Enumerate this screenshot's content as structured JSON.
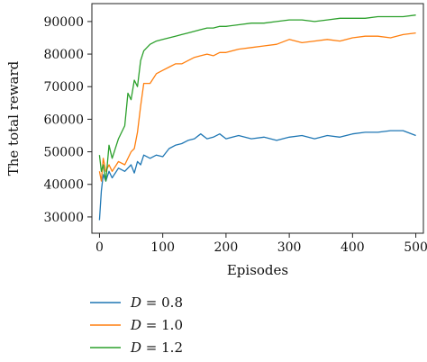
{
  "chart_data": {
    "type": "line",
    "title": "",
    "xlabel": "Episodes",
    "ylabel": "The total reward",
    "xlim": [
      -12,
      512
    ],
    "ylim": [
      25000,
      95500
    ],
    "xticks": [
      0,
      100,
      200,
      300,
      400,
      500
    ],
    "yticks": [
      30000,
      40000,
      50000,
      60000,
      70000,
      80000,
      90000
    ],
    "grid": false,
    "legend_position": "below-left",
    "series": [
      {
        "name": "D = 0.8",
        "legend_var": "D",
        "legend_value": "= 0.8",
        "color": "#1f77b4",
        "x": [
          0,
          3,
          6,
          10,
          15,
          20,
          30,
          40,
          50,
          55,
          60,
          65,
          70,
          80,
          90,
          100,
          110,
          120,
          130,
          140,
          150,
          160,
          170,
          180,
          190,
          200,
          220,
          240,
          260,
          280,
          300,
          320,
          340,
          360,
          380,
          400,
          420,
          440,
          460,
          480,
          500
        ],
        "values": [
          29000,
          38000,
          43000,
          41000,
          44000,
          42000,
          45000,
          44000,
          46000,
          43500,
          47000,
          46000,
          49000,
          48000,
          49000,
          48500,
          51000,
          52000,
          52500,
          53500,
          54000,
          55500,
          54000,
          54500,
          55500,
          54000,
          55000,
          54000,
          54500,
          53500,
          54500,
          55000,
          54000,
          55000,
          54500,
          55500,
          56000,
          56000,
          56500,
          56500,
          55000
        ]
      },
      {
        "name": "D = 1.0",
        "legend_var": "D",
        "legend_value": "= 1.0",
        "color": "#ff7f0e",
        "x": [
          0,
          3,
          6,
          10,
          15,
          20,
          30,
          40,
          50,
          55,
          60,
          65,
          70,
          80,
          90,
          100,
          110,
          120,
          130,
          140,
          150,
          160,
          170,
          180,
          190,
          200,
          220,
          240,
          260,
          280,
          300,
          320,
          340,
          360,
          380,
          400,
          420,
          440,
          460,
          480,
          500
        ],
        "values": [
          44000,
          41000,
          48000,
          44000,
          46000,
          44000,
          47000,
          46000,
          50000,
          51000,
          56000,
          64000,
          71000,
          71000,
          74000,
          75000,
          76000,
          77000,
          77000,
          78000,
          79000,
          79500,
          80000,
          79500,
          80500,
          80500,
          81500,
          82000,
          82500,
          83000,
          84500,
          83500,
          84000,
          84500,
          84000,
          85000,
          85500,
          85500,
          85000,
          86000,
          86500
        ]
      },
      {
        "name": "D = 1.2",
        "legend_var": "D",
        "legend_value": "= 1.2",
        "color": "#2ca02c",
        "x": [
          0,
          3,
          6,
          10,
          15,
          20,
          30,
          40,
          45,
          50,
          55,
          60,
          65,
          70,
          80,
          90,
          100,
          110,
          120,
          130,
          140,
          150,
          160,
          170,
          180,
          190,
          200,
          220,
          240,
          260,
          280,
          300,
          320,
          340,
          360,
          380,
          400,
          420,
          440,
          460,
          480,
          500
        ],
        "values": [
          49000,
          44000,
          46000,
          41000,
          52000,
          48000,
          54000,
          58000,
          68000,
          66000,
          72000,
          70000,
          78000,
          81000,
          83000,
          84000,
          84500,
          85000,
          85500,
          86000,
          86500,
          87000,
          87500,
          88000,
          88000,
          88500,
          88500,
          89000,
          89500,
          89500,
          90000,
          90500,
          90500,
          90000,
          90500,
          91000,
          91000,
          91000,
          91500,
          91500,
          91500,
          92000
        ]
      }
    ]
  }
}
